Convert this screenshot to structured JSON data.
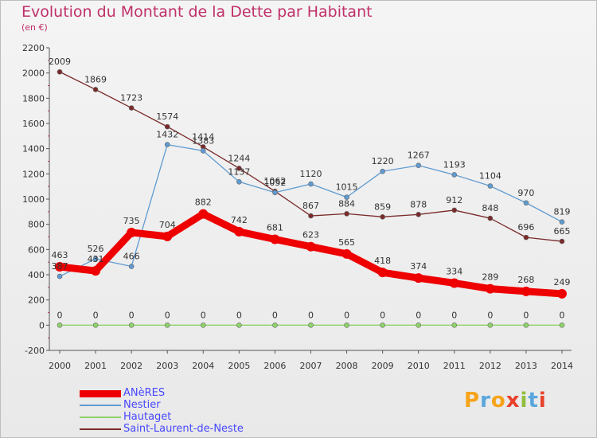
{
  "chart_data": {
    "type": "line",
    "title": "Evolution du Montant de la Dette par Habitant",
    "subtitle": "(en €)",
    "x": [
      2000,
      2001,
      2002,
      2003,
      2004,
      2005,
      2006,
      2007,
      2008,
      2009,
      2010,
      2011,
      2012,
      2013,
      2014
    ],
    "ylim": [
      -200,
      2200
    ],
    "yticks": [
      -200,
      0,
      200,
      400,
      600,
      800,
      1000,
      1200,
      1400,
      1600,
      1800,
      2000,
      2200
    ],
    "grid": false,
    "legend_position": "bottom-left",
    "series": [
      {
        "name": "ANèRES",
        "color": "#ee0000",
        "values": [
          463,
          431,
          735,
          704,
          882,
          742,
          681,
          623,
          565,
          418,
          374,
          334,
          289,
          268,
          249
        ]
      },
      {
        "name": "Nestier",
        "color": "#5f9bd1",
        "values": [
          387,
          526,
          466,
          1432,
          1383,
          1137,
          1052,
          1120,
          1015,
          1220,
          1267,
          1193,
          1104,
          970,
          819
        ]
      },
      {
        "name": "Hautaget",
        "color": "#8fd36b",
        "values": [
          0,
          0,
          0,
          0,
          0,
          0,
          0,
          0,
          0,
          0,
          0,
          0,
          0,
          0,
          0
        ]
      },
      {
        "name": "Saint-Laurent-de-Neste",
        "color": "#7a2a2a",
        "values": [
          2009,
          1869,
          1723,
          1574,
          1414,
          1244,
          1062,
          867,
          884,
          859,
          878,
          912,
          848,
          696,
          665
        ]
      }
    ]
  },
  "logo": {
    "text": "Proxiti",
    "colors": [
      "#f6a318",
      "#5aa6dc",
      "#f6a318",
      "#e8412c",
      "#8fbe3a",
      "#5aa6dc",
      "#e8412c"
    ]
  }
}
